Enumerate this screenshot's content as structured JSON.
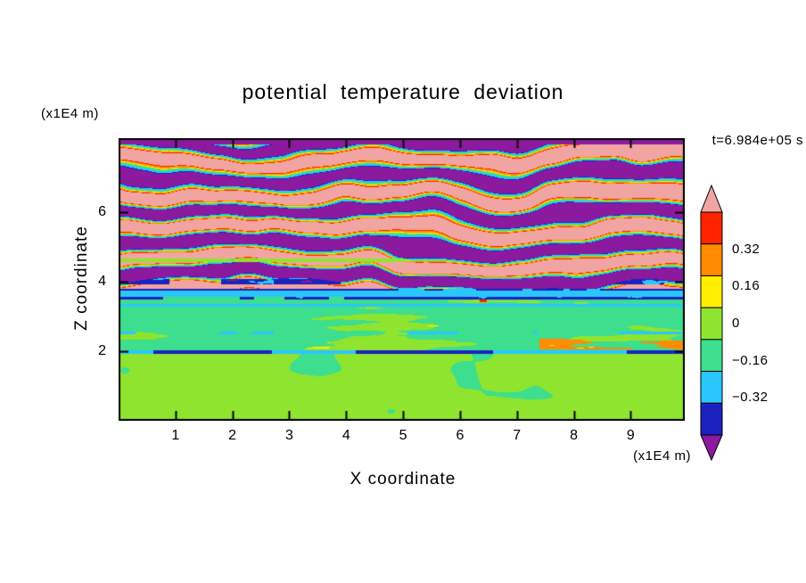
{
  "chart_data": {
    "type": "heatmap",
    "title": "potential temperature deviation",
    "xlabel": "X coordinate",
    "ylabel": "Z coordinate",
    "x_unit_label": "(x1E4 m)",
    "y_unit_label": "(x1E4 m)",
    "timestamp_label": "t=6.984e+05 s",
    "xlim": [
      0,
      9.95
    ],
    "zlim": [
      0,
      8.13
    ],
    "x_ticks": [
      1,
      2,
      3,
      4,
      5,
      6,
      7,
      8,
      9
    ],
    "y_ticks": [
      2,
      4,
      6
    ],
    "grid": false,
    "legend_position": "right-colorbar",
    "colorbar": {
      "tick_labels": [
        "0.32",
        "0.16",
        "0",
        "−0.16",
        "−0.32"
      ],
      "levels": [
        0.4,
        0.32,
        0.16,
        0.08,
        0,
        -0.16,
        -0.32,
        -0.4
      ],
      "palette": [
        {
          "name": "pink-over",
          "hex": "#F1A5A2",
          "min": 0.4
        },
        {
          "name": "red",
          "hex": "#FF2400",
          "min": 0.32
        },
        {
          "name": "orange",
          "hex": "#FF8C00",
          "min": 0.16
        },
        {
          "name": "yellow",
          "hex": "#FFEE00",
          "min": 0.08
        },
        {
          "name": "chartreuse",
          "hex": "#8FE42F",
          "min": 0.0
        },
        {
          "name": "spring-green",
          "hex": "#3DDE8E",
          "min": -0.16
        },
        {
          "name": "cyan",
          "hex": "#2AC7FF",
          "min": -0.32
        },
        {
          "name": "navy",
          "hex": "#1C22BE",
          "min": -0.4
        },
        {
          "name": "purple-under",
          "hex": "#8B1A9E",
          "min": -999
        }
      ]
    },
    "field_structure": {
      "description": "stratified temperature deviation field: gravity-wave bands aloft, cyan shear band near z=3.6, near-zero interior, convective chartreuse blobs below z=1.9",
      "wave_zone": {
        "z_min": 3.8,
        "wavelength": 0.93
      },
      "navy_line_upper": [
        3.74,
        3.8
      ],
      "cyan_band": [
        3.56,
        3.74
      ],
      "navy_line_lower": [
        3.5,
        3.56
      ],
      "interior": {
        "z_min": 2.02,
        "z_max": 3.5,
        "base_value": -0.06
      },
      "dark_line": {
        "z_range": [
          1.92,
          2.02
        ]
      },
      "convective_zone": {
        "z_max": 1.92
      }
    }
  }
}
